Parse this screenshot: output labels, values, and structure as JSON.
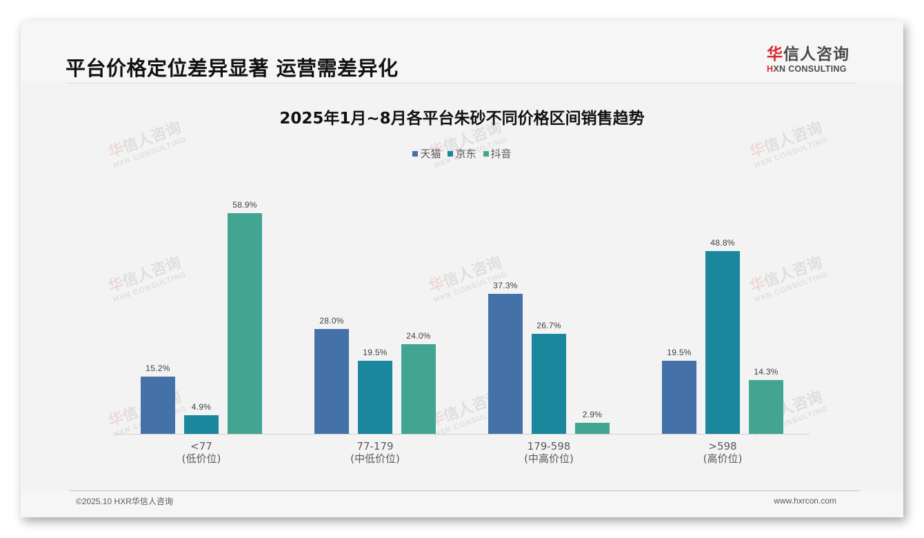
{
  "header": {
    "page_title": "平台价格定位差异显著 运营需差异化",
    "logo": {
      "cn_highlight": "华",
      "cn_rest": "信人咨询",
      "en_highlight": "H",
      "en_rest": "XN CONSULTING"
    }
  },
  "watermark": {
    "cn_highlight": "华",
    "cn_rest": "信人咨询",
    "en": "HXN CONSULTING"
  },
  "colors": {
    "tmall": "#4472a8",
    "jd": "#1a879d",
    "douyin": "#42a591",
    "brand_red": "#d7282f"
  },
  "legend": [
    {
      "label": "天猫",
      "color": "#4472a8"
    },
    {
      "label": "京东",
      "color": "#1a879d"
    },
    {
      "label": "抖音",
      "color": "#42a591"
    }
  ],
  "categories": [
    {
      "range": "<77",
      "tier": "(低价位)"
    },
    {
      "range": "77-179",
      "tier": "(中低价位)"
    },
    {
      "range": "179-598",
      "tier": "(中高价位)"
    },
    {
      "range": ">598",
      "tier": "(高价位)"
    }
  ],
  "chart_data": {
    "type": "bar",
    "title": "2025年1月~8月各平台朱砂不同价格区间销售趋势",
    "categories": [
      "<77\n(低价位)",
      "77-179\n(中低价位)",
      "179-598\n(中高价位)",
      ">598\n(高价位)"
    ],
    "series": [
      {
        "name": "天猫",
        "color": "#4472a8",
        "values": [
          15.2,
          28.0,
          37.3,
          19.5
        ],
        "labels": [
          "15.2%",
          "28.0%",
          "37.3%",
          "19.5%"
        ]
      },
      {
        "name": "京东",
        "color": "#1a879d",
        "values": [
          4.9,
          19.5,
          26.7,
          48.8
        ],
        "labels": [
          "4.9%",
          "19.5%",
          "26.7%",
          "48.8%"
        ]
      },
      {
        "name": "抖音",
        "color": "#42a591",
        "values": [
          58.9,
          24.0,
          2.9,
          14.3
        ],
        "labels": [
          "58.9%",
          "24.0%",
          "2.9%",
          "14.3%"
        ]
      }
    ],
    "xlabel": "",
    "ylabel": "",
    "unit": "%",
    "ylim": [
      0,
      60
    ],
    "grid": false,
    "legend_position": "top",
    "data_labels": true
  },
  "footer": {
    "copyright": "©2025.10 HXR华信人咨询",
    "website": "www.hxrcon.com"
  }
}
